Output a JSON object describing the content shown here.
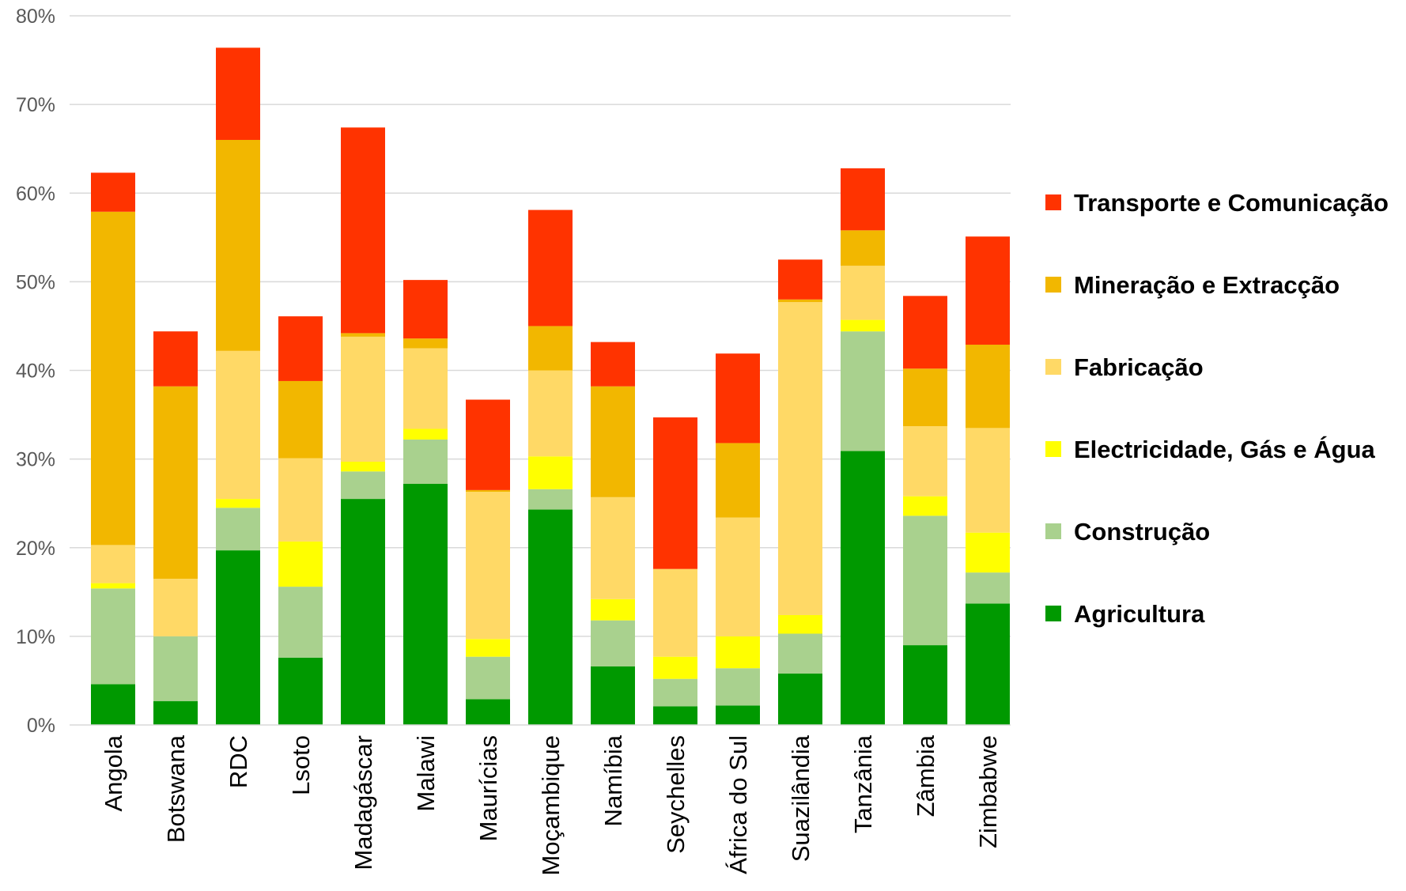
{
  "chart_data": {
    "type": "bar",
    "stacked": true,
    "title": "",
    "xlabel": "",
    "ylabel": "",
    "ylim": [
      0,
      0.8
    ],
    "y_ticks": [
      0,
      0.1,
      0.2,
      0.3,
      0.4,
      0.5,
      0.6,
      0.7,
      0.8
    ],
    "y_tick_labels": [
      "0%",
      "10%",
      "20%",
      "30%",
      "40%",
      "50%",
      "60%",
      "70%",
      "80%"
    ],
    "grid": true,
    "legend_position": "right",
    "categories": [
      "Angola",
      "Botswana",
      "RDC",
      "Lsoto",
      "Madagáscar",
      "Malawi",
      "Maurícias",
      "Moçambique",
      "Namíbia",
      "Seychelles",
      "África do Sul",
      "Suazilândia",
      "Tanzânia",
      "Zâmbia",
      "Zimbabwe"
    ],
    "series": [
      {
        "name": "Agricultura",
        "color": "#009900",
        "values": [
          0.046,
          0.027,
          0.197,
          0.076,
          0.255,
          0.272,
          0.029,
          0.243,
          0.066,
          0.021,
          0.022,
          0.058,
          0.309,
          0.09,
          0.137
        ]
      },
      {
        "name": "Construção",
        "color": "#a9d18e",
        "values": [
          0.108,
          0.073,
          0.048,
          0.08,
          0.031,
          0.05,
          0.048,
          0.023,
          0.052,
          0.031,
          0.042,
          0.045,
          0.135,
          0.146,
          0.035
        ]
      },
      {
        "name": "Electricidade, Gás e Água",
        "color": "#ffff00",
        "values": [
          0.006,
          0.0,
          0.01,
          0.051,
          0.011,
          0.012,
          0.02,
          0.037,
          0.024,
          0.025,
          0.036,
          0.021,
          0.013,
          0.022,
          0.045
        ]
      },
      {
        "name": "Fabricação",
        "color": "#ffd966",
        "values": [
          0.043,
          0.065,
          0.167,
          0.094,
          0.141,
          0.091,
          0.166,
          0.097,
          0.115,
          0.099,
          0.134,
          0.353,
          0.061,
          0.079,
          0.118
        ]
      },
      {
        "name": "Mineração e Extracção",
        "color": "#f2b700",
        "values": [
          0.376,
          0.217,
          0.238,
          0.087,
          0.004,
          0.011,
          0.002,
          0.05,
          0.125,
          0.0,
          0.084,
          0.003,
          0.04,
          0.065,
          0.094
        ]
      },
      {
        "name": "Transporte e Comunicação",
        "color": "#ff3300",
        "values": [
          0.044,
          0.062,
          0.104,
          0.073,
          0.232,
          0.066,
          0.102,
          0.131,
          0.05,
          0.171,
          0.101,
          0.045,
          0.07,
          0.082,
          0.122
        ]
      }
    ]
  }
}
